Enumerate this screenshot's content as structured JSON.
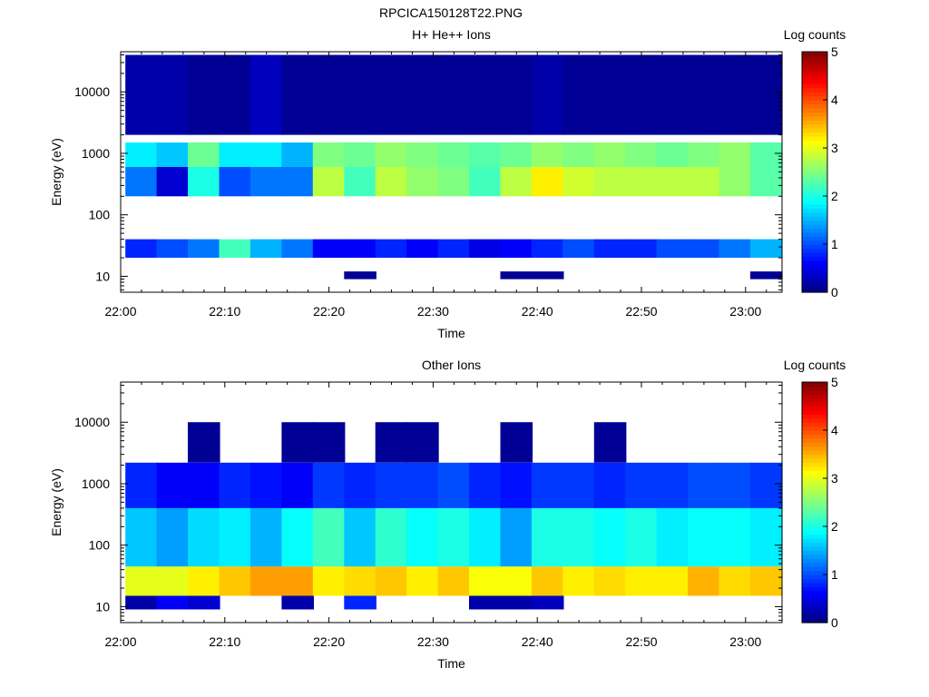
{
  "figure_title": "RPCICA150128T22.PNG",
  "colors": {
    "colormap": [
      "#000080",
      "#0000ff",
      "#0080ff",
      "#00ffff",
      "#80ff80",
      "#ffff00",
      "#ff8000",
      "#ff0000",
      "#800000"
    ]
  },
  "chart_data": [
    {
      "type": "heatmap",
      "title": "H+ He++ Ions",
      "xlabel": "Time",
      "ylabel": "Energy (eV)",
      "colorbar_label": "Log counts",
      "colorbar_range": [
        0,
        5
      ],
      "colorbar_ticks": [
        "0",
        "1",
        "2",
        "3",
        "4",
        "5"
      ],
      "xtick_labels": [
        "22:00",
        "22:10",
        "22:20",
        "22:30",
        "22:40",
        "22:50",
        "23:00"
      ],
      "ytick_labels": [
        "10",
        "100",
        "1000",
        "10000"
      ],
      "x_range_minutes": [
        0,
        63.5
      ],
      "y_range_eV": [
        5.5,
        45000
      ],
      "y_scale": "log",
      "time_bins": [
        "22:02",
        "22:05",
        "22:08",
        "22:11",
        "22:14",
        "22:17",
        "22:20",
        "22:23",
        "22:26",
        "22:29",
        "22:32",
        "22:35",
        "22:38",
        "22:41",
        "22:44",
        "22:47",
        "22:50",
        "22:53",
        "22:56",
        "22:59",
        "23:02"
      ],
      "energy_bands": [
        {
          "e_min": 20,
          "e_max": 40,
          "log_counts": [
            0.8,
            1.0,
            1.2,
            2.2,
            1.5,
            1.2,
            0.6,
            0.6,
            0.8,
            0.6,
            0.8,
            0.5,
            0.6,
            0.8,
            1.0,
            0.8,
            0.8,
            1.0,
            1.0,
            1.2,
            1.5
          ]
        },
        {
          "e_min": 200,
          "e_max": 600,
          "log_counts": [
            1.2,
            0.4,
            2.0,
            1.0,
            1.2,
            1.2,
            2.8,
            2.2,
            2.8,
            2.6,
            2.5,
            2.2,
            2.8,
            3.2,
            2.9,
            2.8,
            2.8,
            2.8,
            2.8,
            2.6,
            2.3
          ]
        },
        {
          "e_min": 600,
          "e_max": 1500,
          "log_counts": [
            1.8,
            1.6,
            2.4,
            1.8,
            1.8,
            1.5,
            2.5,
            2.4,
            2.6,
            2.5,
            2.4,
            2.3,
            2.4,
            2.6,
            2.5,
            2.6,
            2.5,
            2.4,
            2.5,
            2.6,
            2.3
          ]
        },
        {
          "e_min": 2000,
          "e_max": 40000,
          "log_counts": [
            0.2,
            0.2,
            0.1,
            0.1,
            0.3,
            0.1,
            0.1,
            0.1,
            0.1,
            0.1,
            0.1,
            0.1,
            0.1,
            0.2,
            0.1,
            0.1,
            0.1,
            0.1,
            0.1,
            0.1,
            0.1
          ]
        },
        {
          "e_min": 9,
          "e_max": 12,
          "log_counts": [
            0,
            0,
            0,
            0,
            0,
            0,
            0,
            0.1,
            0,
            0,
            0,
            0,
            0.1,
            0.1,
            0,
            0,
            0,
            0,
            0,
            0,
            0.1
          ]
        }
      ]
    },
    {
      "type": "heatmap",
      "title": "Other Ions",
      "xlabel": "Time",
      "ylabel": "Energy (eV)",
      "colorbar_label": "Log counts",
      "colorbar_range": [
        0,
        5
      ],
      "colorbar_ticks": [
        "0",
        "1",
        "2",
        "3",
        "4",
        "5"
      ],
      "xtick_labels": [
        "22:00",
        "22:10",
        "22:20",
        "22:30",
        "22:40",
        "22:50",
        "23:00"
      ],
      "ytick_labels": [
        "10",
        "100",
        "1000",
        "10000"
      ],
      "x_range_minutes": [
        0,
        63.5
      ],
      "y_range_eV": [
        5.5,
        45000
      ],
      "y_scale": "log",
      "time_bins": [
        "22:02",
        "22:05",
        "22:08",
        "22:11",
        "22:14",
        "22:17",
        "22:20",
        "22:23",
        "22:26",
        "22:29",
        "22:32",
        "22:35",
        "22:38",
        "22:41",
        "22:44",
        "22:47",
        "22:50",
        "22:53",
        "22:56",
        "22:59",
        "23:02"
      ],
      "energy_bands": [
        {
          "e_min": 9,
          "e_max": 15,
          "log_counts": [
            0.2,
            0.6,
            0.4,
            0,
            0,
            0.2,
            0,
            0.8,
            0,
            0,
            0,
            0.2,
            0.2,
            0.3,
            0,
            0,
            0,
            0,
            0,
            0,
            0
          ]
        },
        {
          "e_min": 15,
          "e_max": 45,
          "log_counts": [
            3.0,
            3.0,
            3.2,
            3.4,
            3.6,
            3.6,
            3.2,
            3.3,
            3.4,
            3.2,
            3.4,
            3.1,
            3.1,
            3.4,
            3.2,
            3.3,
            3.2,
            3.2,
            3.5,
            3.3,
            3.4
          ]
        },
        {
          "e_min": 45,
          "e_max": 400,
          "log_counts": [
            1.6,
            1.4,
            1.7,
            1.8,
            1.5,
            1.9,
            2.2,
            1.6,
            2.1,
            1.9,
            2.0,
            1.8,
            1.4,
            2.0,
            2.0,
            1.9,
            2.0,
            1.8,
            1.9,
            1.9,
            1.8
          ]
        },
        {
          "e_min": 400,
          "e_max": 2200,
          "log_counts": [
            0.8,
            0.6,
            0.6,
            0.8,
            0.7,
            0.6,
            0.9,
            0.8,
            0.9,
            0.9,
            1.0,
            0.8,
            0.7,
            0.9,
            0.9,
            0.8,
            0.9,
            0.9,
            1.0,
            1.0,
            0.9
          ]
        },
        {
          "e_min": 2200,
          "e_max": 10000,
          "log_counts": [
            0,
            0,
            0.1,
            0,
            0,
            0.1,
            0.1,
            0,
            0.1,
            0.1,
            0,
            0,
            0.1,
            0,
            0,
            0.1,
            0,
            0,
            0,
            0,
            0
          ]
        }
      ]
    }
  ]
}
